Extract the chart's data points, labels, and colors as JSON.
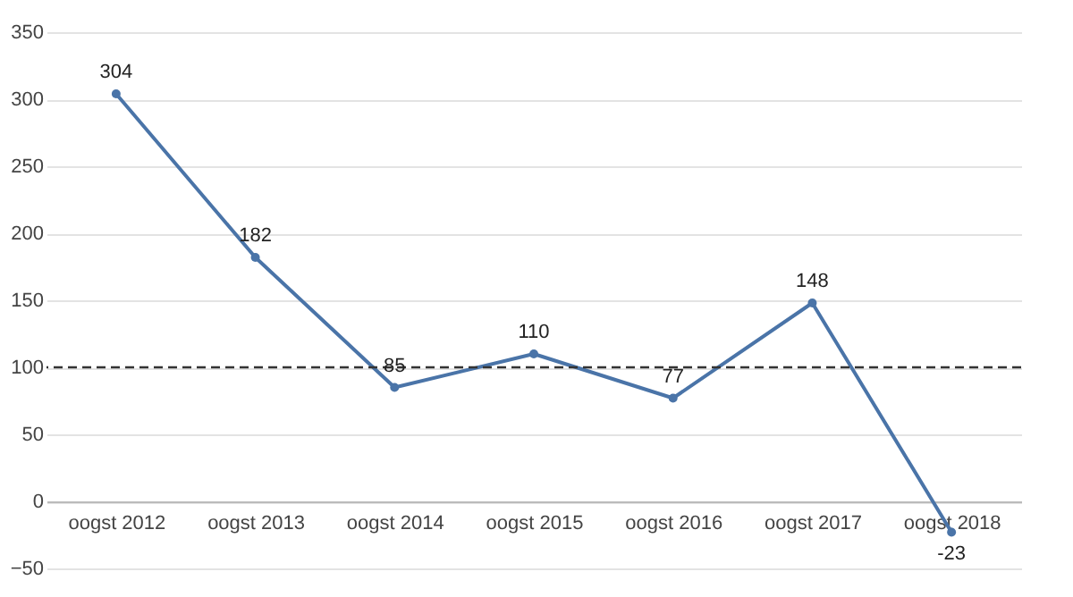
{
  "chart_data": {
    "type": "line",
    "categories": [
      "oogst 2012",
      "oogst 2013",
      "oogst 2014",
      "oogst 2015",
      "oogst 2016",
      "oogst 2017",
      "oogst 2018"
    ],
    "series": [
      {
        "color": "#4a74a8",
        "values": [
          304,
          182,
          85,
          110,
          77,
          148,
          -23
        ]
      }
    ],
    "ylim": [
      -50,
      350
    ],
    "yticks": [
      -50,
      0,
      50,
      100,
      150,
      200,
      250,
      300,
      350
    ],
    "grid": "y",
    "marker": "circle",
    "data_labels": true,
    "ref_lines": [
      {
        "axis": "y",
        "value": 100,
        "color": "#333333",
        "line_style": "dashed"
      }
    ]
  }
}
